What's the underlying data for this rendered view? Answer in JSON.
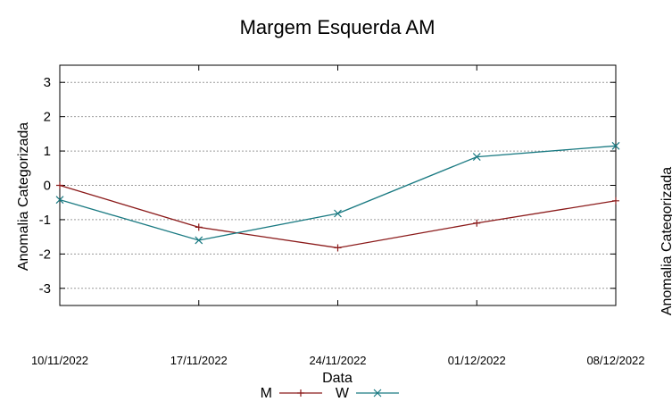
{
  "chart_data": {
    "type": "line",
    "title": "Margem Esquerda AM",
    "xlabel": "Data",
    "ylabel": "Anomalia Categorizada",
    "second_ylabel_fragment": "Anomalia Categorizada",
    "categories": [
      "10/11/2022",
      "17/11/2022",
      "24/11/2022",
      "01/12/2022",
      "08/12/2022"
    ],
    "ylim": [
      -3.5,
      3.5
    ],
    "yticks": [
      3,
      2,
      1,
      0,
      -1,
      -2,
      -3
    ],
    "grid": true,
    "legend_position": "bottom-center",
    "series": [
      {
        "name": "M",
        "color": "#8b1a1a",
        "marker": "plus",
        "values": [
          0.0,
          -1.22,
          -1.82,
          -1.1,
          -0.45
        ]
      },
      {
        "name": "W",
        "color": "#1a7a82",
        "marker": "cross",
        "values": [
          -0.42,
          -1.6,
          -0.82,
          0.83,
          1.15
        ]
      }
    ]
  }
}
